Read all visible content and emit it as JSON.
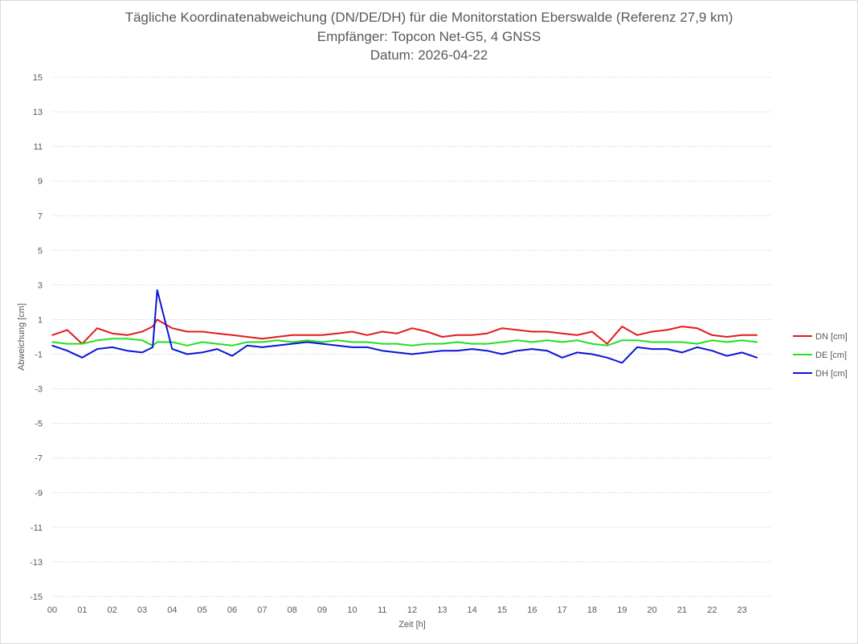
{
  "chart_data": {
    "type": "line",
    "title_lines": [
      "Tägliche Koordinatenabweichung (DN/DE/DH) für die Monitorstation Eberswalde (Referenz 27,9 km)",
      "Empfänger: Topcon Net-G5, 4 GNSS",
      "Datum: 2026-04-22"
    ],
    "xlabel": "Zeit [h]",
    "ylabel": "Abweichung [cm]",
    "ylim": [
      -15,
      15
    ],
    "xlim": [
      0,
      24
    ],
    "grid": true,
    "legend_position": "right",
    "x_ticks": [
      "00",
      "01",
      "02",
      "03",
      "04",
      "05",
      "06",
      "07",
      "08",
      "09",
      "10",
      "11",
      "12",
      "13",
      "14",
      "15",
      "16",
      "17",
      "18",
      "19",
      "20",
      "21",
      "22",
      "23"
    ],
    "y_ticks": [
      "15",
      "13",
      "11",
      "9",
      "7",
      "5",
      "3",
      "1",
      "-1",
      "-3",
      "-5",
      "-7",
      "-9",
      "-11",
      "-13",
      "-15"
    ],
    "x": [
      0,
      0.5,
      1,
      1.5,
      2,
      2.5,
      3,
      3.35,
      3.5,
      4,
      4.5,
      5,
      5.5,
      6,
      6.5,
      7,
      7.5,
      8,
      8.5,
      9,
      9.5,
      10,
      10.5,
      11,
      11.5,
      12,
      12.5,
      13,
      13.5,
      14,
      14.5,
      15,
      15.5,
      16,
      16.5,
      17,
      17.5,
      18,
      18.5,
      19,
      19.5,
      20,
      20.5,
      21,
      21.5,
      22,
      22.5,
      23,
      23.5
    ],
    "series": [
      {
        "name": "DN [cm]",
        "color": "#e31a1c",
        "values": [
          0.1,
          0.4,
          -0.4,
          0.5,
          0.2,
          0.1,
          0.3,
          0.6,
          1.0,
          0.5,
          0.3,
          0.3,
          0.2,
          0.1,
          0.0,
          -0.1,
          0.0,
          0.1,
          0.1,
          0.1,
          0.2,
          0.3,
          0.1,
          0.3,
          0.2,
          0.5,
          0.3,
          0.0,
          0.1,
          0.1,
          0.2,
          0.5,
          0.4,
          0.3,
          0.3,
          0.2,
          0.1,
          0.3,
          -0.4,
          0.6,
          0.1,
          0.3,
          0.4,
          0.6,
          0.5,
          0.1,
          0.0,
          0.1,
          0.1
        ]
      },
      {
        "name": "DE [cm]",
        "color": "#22e022",
        "values": [
          -0.3,
          -0.4,
          -0.4,
          -0.2,
          -0.1,
          -0.1,
          -0.2,
          -0.5,
          -0.3,
          -0.3,
          -0.5,
          -0.3,
          -0.4,
          -0.5,
          -0.3,
          -0.3,
          -0.2,
          -0.3,
          -0.2,
          -0.3,
          -0.2,
          -0.3,
          -0.3,
          -0.4,
          -0.4,
          -0.5,
          -0.4,
          -0.4,
          -0.3,
          -0.4,
          -0.4,
          -0.3,
          -0.2,
          -0.3,
          -0.2,
          -0.3,
          -0.2,
          -0.4,
          -0.5,
          -0.2,
          -0.2,
          -0.3,
          -0.3,
          -0.3,
          -0.4,
          -0.2,
          -0.3,
          -0.2,
          -0.3
        ]
      },
      {
        "name": "DH [cm]",
        "color": "#0a14d6",
        "values": [
          -0.5,
          -0.8,
          -1.2,
          -0.7,
          -0.6,
          -0.8,
          -0.9,
          -0.6,
          2.7,
          -0.7,
          -1.0,
          -0.9,
          -0.7,
          -1.1,
          -0.5,
          -0.6,
          -0.5,
          -0.4,
          -0.3,
          -0.4,
          -0.5,
          -0.6,
          -0.6,
          -0.8,
          -0.9,
          -1.0,
          -0.9,
          -0.8,
          -0.8,
          -0.7,
          -0.8,
          -1.0,
          -0.8,
          -0.7,
          -0.8,
          -1.2,
          -0.9,
          -1.0,
          -1.2,
          -1.5,
          -0.6,
          -0.7,
          -0.7,
          -0.9,
          -0.6,
          -0.8,
          -1.1,
          -0.9,
          -1.2
        ]
      }
    ]
  }
}
